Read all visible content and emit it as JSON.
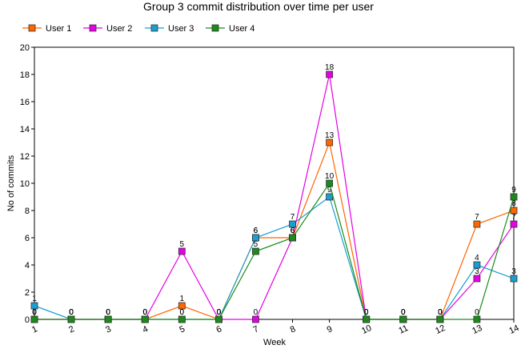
{
  "chart_data": {
    "type": "line",
    "title": "Group 3 commit distribution over time per user",
    "xlabel": "Week",
    "ylabel": "No of commits",
    "categories": [
      "1",
      "2",
      "3",
      "4",
      "5",
      "6",
      "7",
      "8",
      "9",
      "10",
      "11",
      "12",
      "13",
      "14"
    ],
    "ylim": [
      0,
      20
    ],
    "yticks": [
      "0",
      "2",
      "4",
      "6",
      "8",
      "10",
      "12",
      "14",
      "16",
      "18",
      "20"
    ],
    "legend_position": "top-left",
    "grid": false,
    "series": [
      {
        "name": "User 1",
        "color": "#ff6600",
        "values": [
          0,
          0,
          0,
          0,
          1,
          0,
          6,
          6,
          13,
          0,
          0,
          0,
          7,
          8
        ]
      },
      {
        "name": "User 2",
        "color": "#e600e6",
        "values": [
          0,
          0,
          0,
          0,
          5,
          0,
          0,
          6,
          18,
          0,
          0,
          0,
          3,
          7
        ]
      },
      {
        "name": "User 3",
        "color": "#1a9fd0",
        "values": [
          1,
          0,
          0,
          0,
          0,
          0,
          6,
          7,
          9,
          0,
          0,
          0,
          4,
          3
        ]
      },
      {
        "name": "User 4",
        "color": "#1a8c1a",
        "values": [
          0,
          0,
          0,
          0,
          0,
          0,
          5,
          6,
          10,
          0,
          0,
          0,
          0,
          9
        ]
      }
    ]
  }
}
